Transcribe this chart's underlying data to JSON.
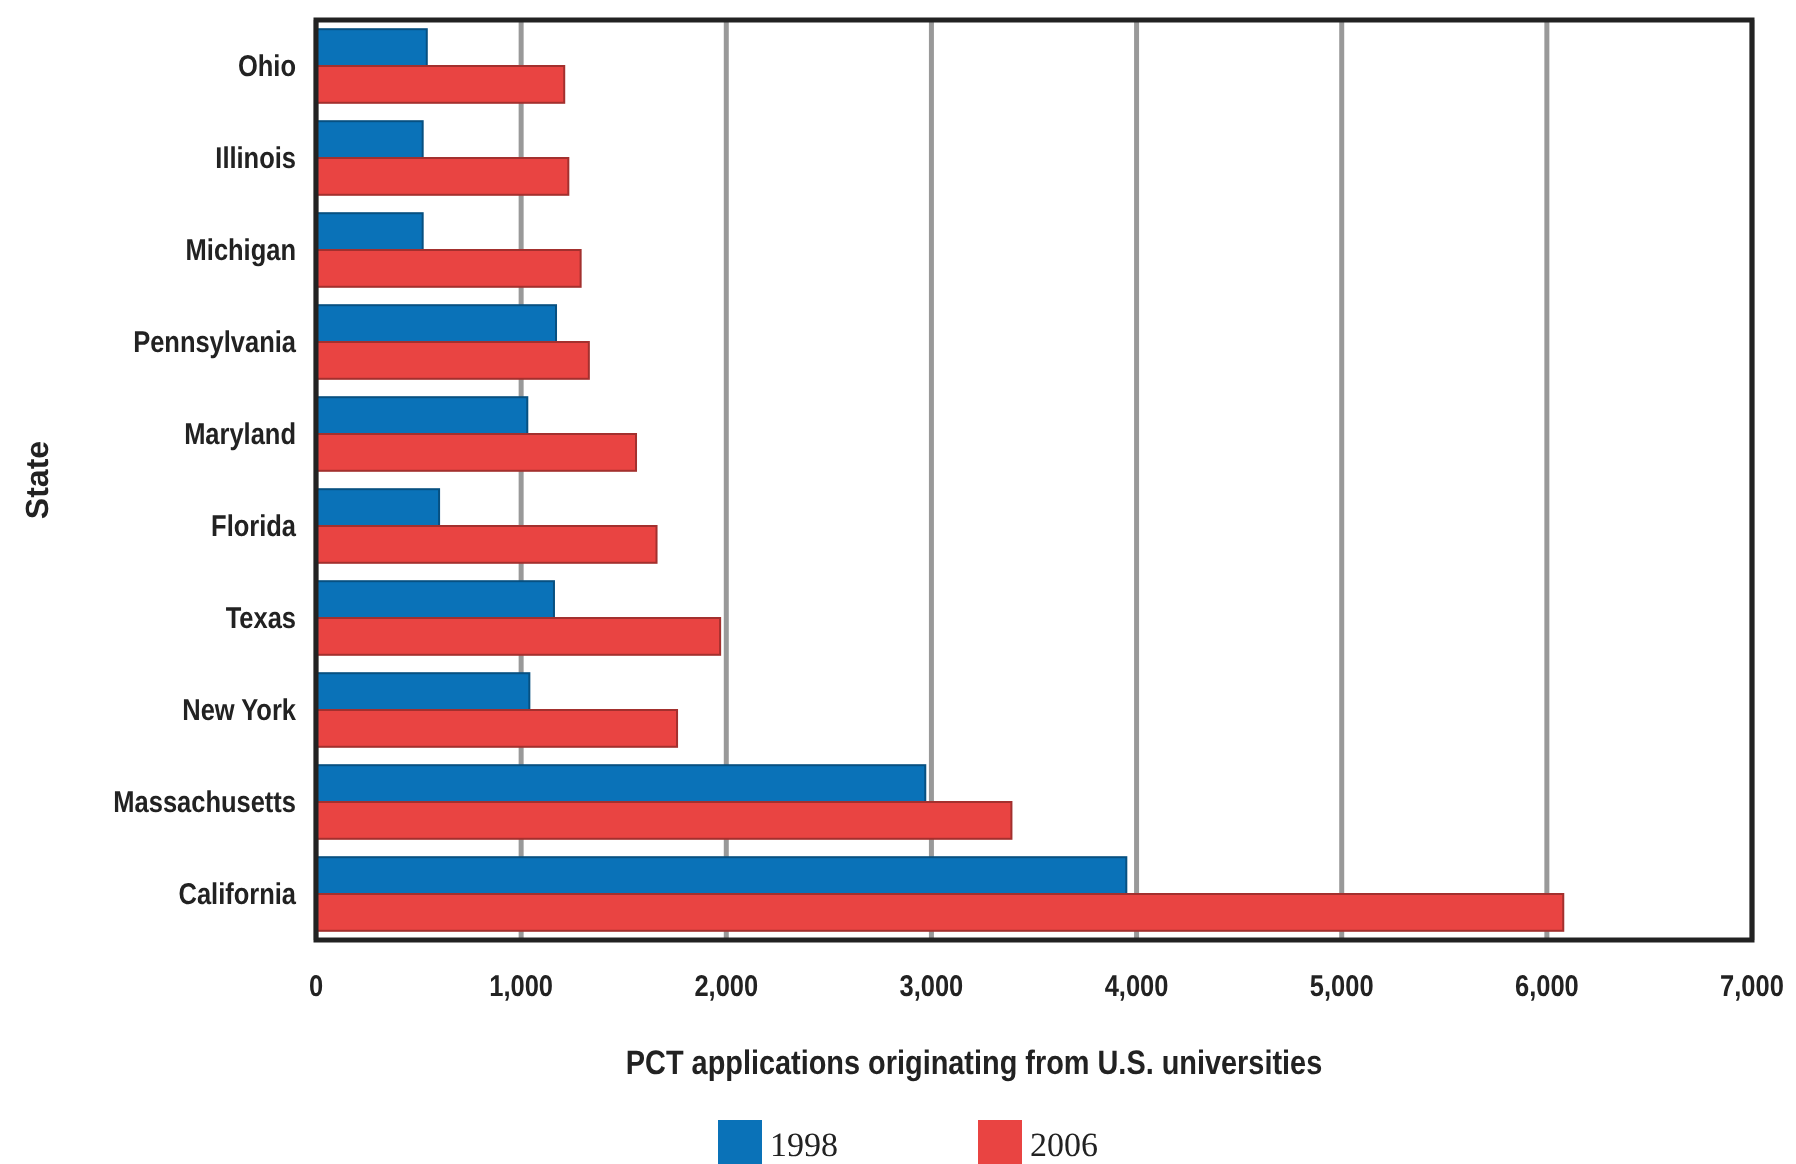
{
  "chart_data": {
    "type": "bar",
    "orientation": "horizontal",
    "xlabel": "PCT applications originating from U.S. universities",
    "ylabel": "State",
    "categories": [
      "Ohio",
      "Illinois",
      "Michigan",
      "Pennsylvania",
      "Maryland",
      "Florida",
      "Texas",
      "New York",
      "Massachusetts",
      "California"
    ],
    "series": [
      {
        "name": "1998",
        "color": "#0a72b8",
        "values": [
          540,
          520,
          520,
          1170,
          1030,
          600,
          1160,
          1040,
          2970,
          3950
        ]
      },
      {
        "name": "2006",
        "color": "#e94442",
        "values": [
          1210,
          1230,
          1290,
          1330,
          1560,
          1660,
          1970,
          1760,
          3390,
          6080
        ]
      }
    ],
    "xlim": [
      0,
      7000
    ],
    "xticks": [
      0,
      {
        "value": 1000,
        "label": "1,000"
      },
      {
        "value": 2000,
        "label": "2,000"
      },
      {
        "value": 3000,
        "label": "3,000"
      },
      {
        "value": 4000,
        "label": "4,000"
      },
      {
        "value": 5000,
        "label": "5,000"
      },
      {
        "value": 6000,
        "label": "6,000"
      },
      {
        "value": 7000,
        "label": "7,000"
      }
    ],
    "grid": "x",
    "legend": "bottom"
  }
}
